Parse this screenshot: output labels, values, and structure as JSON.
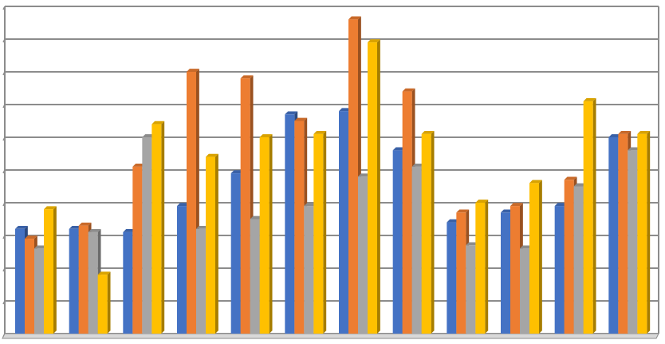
{
  "chart_data": {
    "type": "bar",
    "categories": [
      "",
      "",
      "",
      "",
      "",
      "",
      "",
      "",
      "",
      "",
      "",
      ""
    ],
    "series": [
      {
        "color": "#4472C4",
        "values": [
          3.2,
          3.2,
          3.1,
          3.9,
          4.9,
          6.7,
          6.8,
          5.6,
          3.4,
          3.7,
          3.9,
          6.0
        ]
      },
      {
        "color": "#ED7D31",
        "values": [
          2.9,
          3.3,
          5.1,
          8.0,
          7.8,
          6.5,
          9.6,
          7.4,
          3.7,
          3.9,
          4.7,
          6.1
        ]
      },
      {
        "color": "#A5A5A5",
        "values": [
          2.6,
          3.1,
          6.0,
          3.2,
          3.5,
          3.9,
          4.8,
          5.1,
          2.7,
          2.6,
          4.5,
          5.6
        ]
      },
      {
        "color": "#FFC000",
        "values": [
          3.8,
          1.8,
          6.4,
          5.4,
          6.0,
          6.1,
          8.9,
          6.1,
          4.0,
          4.6,
          7.1,
          6.1
        ]
      }
    ],
    "ylim": [
      0,
      10
    ],
    "grid": true,
    "legend": "none"
  }
}
